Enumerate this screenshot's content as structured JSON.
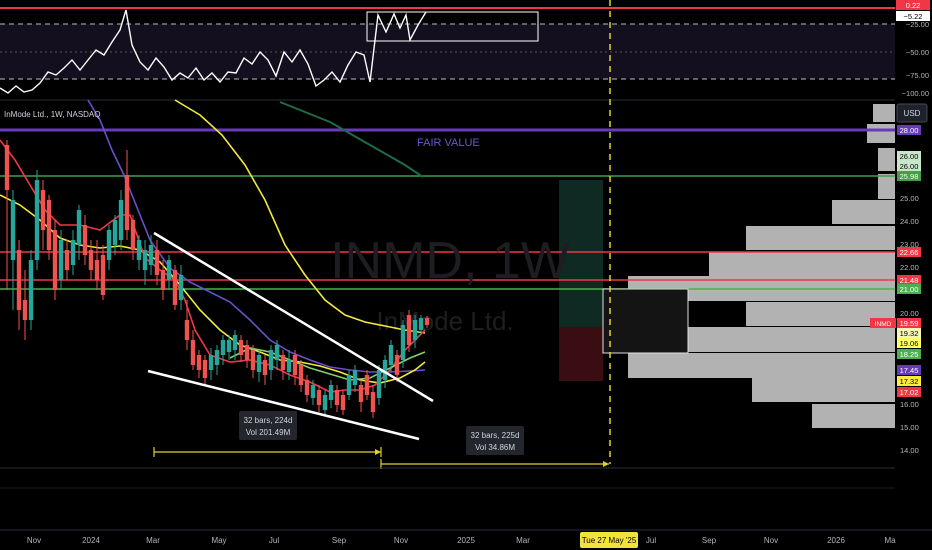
{
  "symbol": {
    "title": "InMode Ltd., 1W, NASDAQ",
    "watermark_ticker": "INMD, 1W",
    "watermark_name": "InMode Ltd."
  },
  "currency_button": "USD",
  "annotations": {
    "fair_value": "FAIR VALUE",
    "range_1": {
      "bars": "32 bars, 224d",
      "vol": "Vol 201.49M"
    },
    "range_2": {
      "bars": "32 bars, 225d",
      "vol": "Vol 34.86M"
    }
  },
  "oscillator_axis": {
    "ticks": [
      "−25.00",
      "−50.00",
      "−75.00",
      "−100.00"
    ],
    "badges": [
      "0.22",
      "−5.22"
    ]
  },
  "price_axis": {
    "ticks": [
      "25.00",
      "24.00",
      "23.00",
      "22.00",
      "20.00",
      "18.25",
      "16.00",
      "15.00",
      "14.00"
    ],
    "badges": [
      {
        "text": "28.00",
        "bg": "#673ab7",
        "fg": "#ffffff"
      },
      {
        "text": "26.00",
        "bg": "#c8e6c9",
        "fg": "#000000"
      },
      {
        "text": "26.00",
        "bg": "#c8e6c9",
        "fg": "#000000"
      },
      {
        "text": "25.98",
        "bg": "#43a047",
        "fg": "#ffffff"
      },
      {
        "text": "22.66",
        "bg": "#f23645",
        "fg": "#ffffff"
      },
      {
        "text": "21.48",
        "bg": "#f23645",
        "fg": "#ffffff"
      },
      {
        "text": "21.00",
        "bg": "#4caf50",
        "fg": "#ffffff"
      },
      {
        "text": "19.59",
        "bg": "#f23645",
        "fg": "#ffffff"
      },
      {
        "text": "19.32",
        "bg": "#f5f5b5",
        "fg": "#000000"
      },
      {
        "text": "19.06",
        "bg": "#ffff66",
        "fg": "#000000"
      },
      {
        "text": "18.25",
        "bg": "#4caf50",
        "fg": "#ffffff"
      },
      {
        "text": "17.45",
        "bg": "#673ab7",
        "fg": "#ffffff"
      },
      {
        "text": "17.32",
        "bg": "#ffeb3b",
        "fg": "#000000"
      },
      {
        "text": "17.02",
        "bg": "#f23645",
        "fg": "#ffffff"
      }
    ],
    "ticker_tag": "INMD"
  },
  "time_axis": {
    "labels": [
      "Nov",
      "2024",
      "Mar",
      "May",
      "Jul",
      "Sep",
      "Nov",
      "2025",
      "Mar",
      "Jul",
      "Sep",
      "Nov",
      "2026",
      "Ma"
    ],
    "highlight": "Tue 27 May '25"
  },
  "colors": {
    "up": "#26a69a",
    "down": "#ef5350",
    "horizontal_red": "#f23645",
    "horizontal_green": "#4caf50",
    "fair_value_line": "#673ab7",
    "dashed_marker": "#e6d22c",
    "volume_profile": "#b2b2b2"
  }
}
